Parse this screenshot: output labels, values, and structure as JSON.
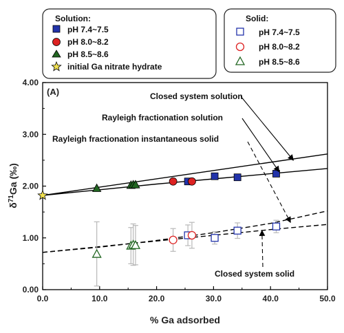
{
  "chart_data": {
    "type": "scatter",
    "panel_label": "(A)",
    "xlabel": "% Ga adsorbed",
    "ylabel_main": "δ",
    "ylabel_sup": "71",
    "ylabel_rest": "Ga (‰)",
    "xlim": [
      0,
      50
    ],
    "ylim": [
      0,
      4
    ],
    "x_ticks": [
      "0.0",
      "10.0",
      "20.0",
      "30.0",
      "40.0",
      "50.0"
    ],
    "x_tick_values": [
      0,
      10,
      20,
      30,
      40,
      50
    ],
    "y_ticks": [
      "0.00",
      "1.00",
      "2.00",
      "3.00",
      "4.00"
    ],
    "y_tick_values": [
      0,
      1,
      2,
      3,
      4
    ],
    "legend_solution": {
      "title": "Solution:",
      "entries": [
        "pH 7.4~7.5",
        "pH 8.0~8.2",
        "pH 8.5~8.6",
        "initial Ga nitrate hydrate"
      ]
    },
    "legend_solid": {
      "title": "Solid:",
      "entries": [
        "pH 7.4~7.5",
        "pH 8.0~8.2",
        "pH 8.5~8.6"
      ]
    },
    "colors": {
      "blue": "#2233aa",
      "red": "#dd2222",
      "green": "#226622",
      "star": "#f0e050",
      "line": "#000000",
      "errorbar": "#b8b8b8"
    },
    "series": [
      {
        "name": "Solution pH 7.4~7.5",
        "marker": "square",
        "filled": true,
        "color": "#2233aa",
        "points": [
          [
            25.5,
            2.09
          ],
          [
            30.2,
            2.19
          ],
          [
            34.2,
            2.17
          ],
          [
            41.0,
            2.24
          ]
        ]
      },
      {
        "name": "Solution pH 8.0~8.2",
        "marker": "circle",
        "filled": true,
        "color": "#dd2222",
        "points": [
          [
            22.9,
            2.09
          ],
          [
            26.2,
            2.09
          ]
        ]
      },
      {
        "name": "Solution pH 8.5~8.6",
        "marker": "triangle",
        "filled": true,
        "color": "#226622",
        "points": [
          [
            9.5,
            1.96
          ],
          [
            15.5,
            2.02
          ],
          [
            15.9,
            2.03
          ],
          [
            16.3,
            2.03
          ]
        ]
      },
      {
        "name": "initial Ga nitrate hydrate",
        "marker": "star",
        "filled": true,
        "color": "#f0e050",
        "points": [
          [
            0.0,
            1.82
          ]
        ]
      },
      {
        "name": "Solid pH 7.4~7.5",
        "marker": "square",
        "filled": false,
        "color": "#2233aa",
        "points": [
          [
            25.5,
            1.05
          ],
          [
            30.2,
            1.0
          ],
          [
            34.2,
            1.14
          ],
          [
            41.0,
            1.22
          ]
        ],
        "errors": [
          0.2,
          0.12,
          0.15,
          0.12
        ]
      },
      {
        "name": "Solid pH 8.0~8.2",
        "marker": "circle",
        "filled": false,
        "color": "#dd2222",
        "points": [
          [
            22.9,
            0.96
          ],
          [
            26.2,
            1.05
          ]
        ],
        "errors": [
          0.22,
          0.25
        ]
      },
      {
        "name": "Solid pH 8.5~8.6",
        "marker": "triangle",
        "filled": false,
        "color": "#226622",
        "points": [
          [
            9.5,
            0.69
          ],
          [
            15.5,
            0.85
          ],
          [
            15.9,
            0.87
          ],
          [
            16.3,
            0.86
          ]
        ],
        "errors": [
          0.62,
          0.35,
          0.4,
          0.38
        ]
      }
    ],
    "model_curves": [
      {
        "name": "Closed system solution",
        "style": "solid",
        "x": [
          0,
          50
        ],
        "y": [
          1.82,
          2.62
        ]
      },
      {
        "name": "Rayleigh fractionation solution",
        "style": "solid",
        "x": [
          0,
          10,
          20,
          30,
          40,
          50
        ],
        "y": [
          1.82,
          1.93,
          2.04,
          2.14,
          2.24,
          2.34
        ]
      },
      {
        "name": "Rayleigh fractionation instantaneous solid",
        "style": "dashed",
        "x": [
          0,
          10,
          20,
          30,
          40,
          50
        ],
        "y": [
          0.72,
          0.83,
          0.94,
          1.05,
          1.16,
          1.26
        ]
      },
      {
        "name": "Closed system solid",
        "style": "dashed",
        "x": [
          0,
          10,
          20,
          30,
          40,
          50
        ],
        "y": [
          0.72,
          0.82,
          0.95,
          1.1,
          1.28,
          1.52
        ]
      }
    ],
    "annotations": [
      {
        "text": "Closed system solution",
        "curve": 0
      },
      {
        "text": "Rayleigh fractionation solution",
        "curve": 1
      },
      {
        "text": "Rayleigh fractionation instantaneous solid",
        "curve": 2
      },
      {
        "text": "Closed system solid",
        "curve": 3
      }
    ]
  }
}
